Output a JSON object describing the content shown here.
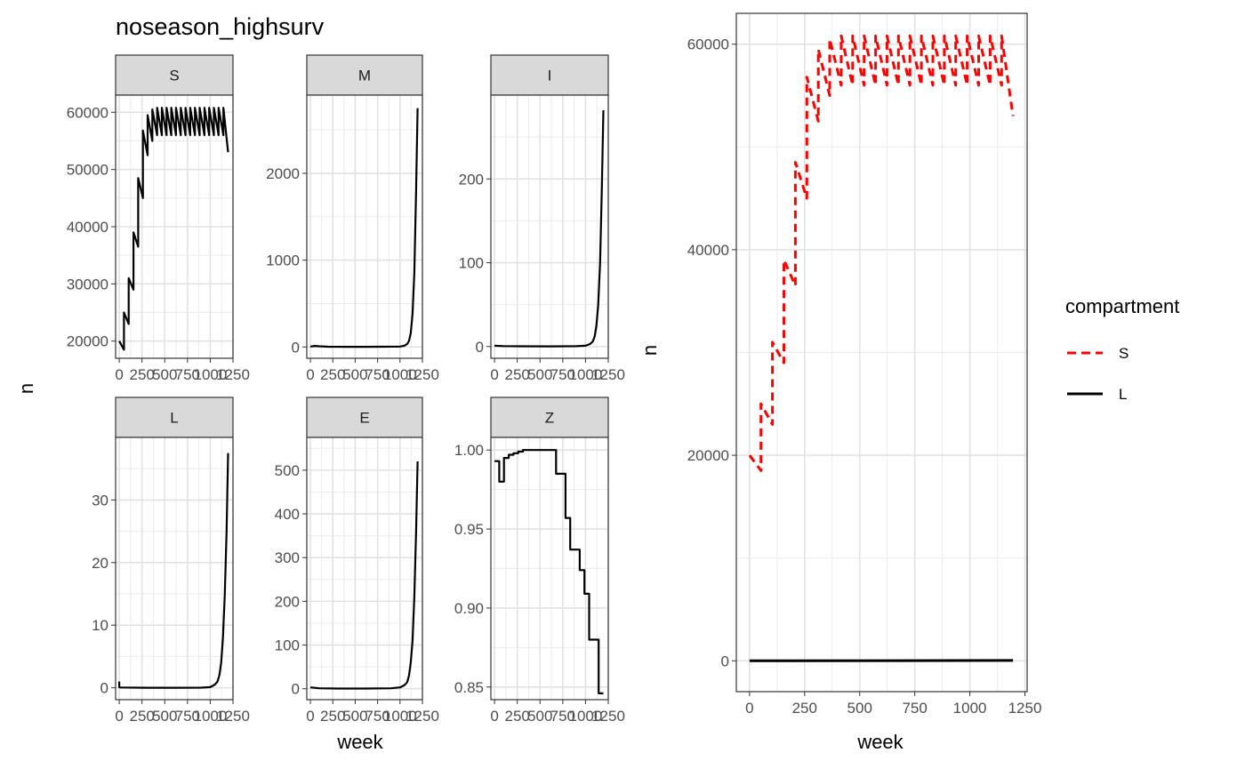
{
  "chart_data": [
    {
      "type": "line",
      "title": "noseason_highsurv",
      "facets": [
        {
          "strip": "S",
          "x_ticks": [
            0,
            250,
            500,
            750,
            1000,
            1250
          ],
          "x_tick_labels": [
            "0",
            "250",
            "500",
            "750",
            "1000",
            "1250"
          ],
          "xlim": [
            -40,
            1250
          ],
          "y_ticks": [
            20000,
            30000,
            40000,
            50000,
            60000
          ],
          "y_tick_labels": [
            "20000",
            "30000",
            "40000",
            "50000",
            "60000"
          ],
          "ylim": [
            17000,
            63000
          ],
          "x": [
            0,
            52,
            52,
            104,
            104,
            156,
            156,
            208,
            208,
            260,
            260,
            312,
            312,
            364,
            364,
            416,
            416,
            468,
            468,
            520,
            520,
            572,
            572,
            624,
            624,
            676,
            676,
            728,
            728,
            780,
            780,
            832,
            832,
            884,
            884,
            936,
            936,
            988,
            988,
            1040,
            1040,
            1092,
            1092,
            1144,
            1144,
            1196
          ],
          "y": [
            20000,
            18500,
            25000,
            23000,
            31000,
            29000,
            39000,
            36500,
            48500,
            45000,
            56800,
            52500,
            59500,
            55000,
            60500,
            56000,
            60800,
            56000,
            60800,
            56000,
            60800,
            56000,
            60800,
            56000,
            60800,
            56000,
            60800,
            56000,
            60800,
            56000,
            60800,
            56000,
            60800,
            56000,
            60800,
            56000,
            60800,
            56000,
            60800,
            56000,
            60800,
            56000,
            60800,
            56000,
            60800,
            53000
          ]
        },
        {
          "strip": "M",
          "x_ticks": [
            0,
            250,
            500,
            750,
            1000,
            1250
          ],
          "x_tick_labels": [
            "0",
            "250",
            "500",
            "750",
            "1000",
            "1250"
          ],
          "xlim": [
            -40,
            1250
          ],
          "y_ticks": [
            0,
            1000,
            2000
          ],
          "y_tick_labels": [
            "0",
            "1000",
            "2000"
          ],
          "ylim": [
            -130,
            2900
          ],
          "x": [
            0,
            50,
            100,
            200,
            400,
            600,
            800,
            1000,
            1050,
            1080,
            1100,
            1120,
            1140,
            1160,
            1180,
            1196
          ],
          "y": [
            5,
            12,
            8,
            3,
            2,
            2,
            3,
            5,
            15,
            35,
            70,
            160,
            380,
            850,
            1800,
            2750
          ]
        },
        {
          "strip": "I",
          "x_ticks": [
            0,
            250,
            500,
            750,
            1000,
            1250
          ],
          "x_tick_labels": [
            "0",
            "250",
            "500",
            "750",
            "1000",
            "1250"
          ],
          "xlim": [
            -40,
            1250
          ],
          "y_ticks": [
            0,
            100,
            200
          ],
          "y_tick_labels": [
            "0",
            "100",
            "200"
          ],
          "ylim": [
            -14,
            300
          ],
          "x": [
            0,
            100,
            300,
            600,
            900,
            1000,
            1050,
            1080,
            1100,
            1120,
            1140,
            1160,
            1180,
            1196
          ],
          "y": [
            1,
            0.5,
            0.3,
            0.2,
            0.4,
            1,
            3,
            6,
            12,
            25,
            50,
            100,
            190,
            282
          ]
        },
        {
          "strip": "L",
          "x_ticks": [
            0,
            250,
            500,
            750,
            1000,
            1250
          ],
          "x_tick_labels": [
            "0",
            "250",
            "500",
            "750",
            "1000",
            "1250"
          ],
          "xlim": [
            -40,
            1250
          ],
          "y_ticks": [
            0,
            10,
            20,
            30
          ],
          "y_tick_labels": [
            "0",
            "10",
            "20",
            "30"
          ],
          "ylim": [
            -1.9,
            40
          ],
          "x": [
            0,
            0,
            10,
            300,
            600,
            900,
            1000,
            1050,
            1080,
            1100,
            1120,
            1140,
            1160,
            1180,
            1196
          ],
          "y": [
            1,
            0.1,
            0.05,
            0.01,
            0.01,
            0.02,
            0.1,
            0.5,
            1,
            2,
            4,
            8,
            15,
            25,
            37.5
          ]
        },
        {
          "strip": "E",
          "x_ticks": [
            0,
            250,
            500,
            750,
            1000,
            1250
          ],
          "x_tick_labels": [
            "0",
            "250",
            "500",
            "750",
            "1000",
            "1250"
          ],
          "xlim": [
            -40,
            1250
          ],
          "y_ticks": [
            0,
            100,
            200,
            300,
            400,
            500
          ],
          "y_tick_labels": [
            "0",
            "100",
            "200",
            "300",
            "400",
            "500"
          ],
          "ylim": [
            -25,
            575
          ],
          "x": [
            0,
            100,
            300,
            600,
            900,
            1000,
            1050,
            1080,
            1100,
            1120,
            1140,
            1160,
            1180,
            1196
          ],
          "y": [
            3,
            1,
            0.5,
            0.5,
            1,
            3,
            8,
            15,
            30,
            60,
            110,
            210,
            360,
            520
          ]
        },
        {
          "strip": "Z",
          "x_ticks": [
            0,
            250,
            500,
            750,
            1000,
            1250
          ],
          "x_tick_labels": [
            "0",
            "250",
            "500",
            "750",
            "1000",
            "1250"
          ],
          "xlim": [
            -40,
            1250
          ],
          "y_ticks": [
            0.85,
            0.9,
            0.95,
            1.0
          ],
          "y_tick_labels": [
            "0.85",
            "0.90",
            "0.95",
            "1.00"
          ],
          "ylim": [
            0.842,
            1.008
          ],
          "x": [
            0,
            52,
            52,
            104,
            104,
            156,
            156,
            208,
            208,
            260,
            260,
            312,
            312,
            676,
            676,
            780,
            780,
            832,
            832,
            936,
            936,
            988,
            988,
            1040,
            1040,
            1144,
            1144,
            1196
          ],
          "y": [
            0.993,
            0.993,
            0.98,
            0.98,
            0.995,
            0.995,
            0.997,
            0.997,
            0.998,
            0.998,
            0.999,
            0.999,
            1.0,
            1.0,
            0.985,
            0.985,
            0.957,
            0.957,
            0.937,
            0.937,
            0.924,
            0.924,
            0.909,
            0.909,
            0.88,
            0.88,
            0.846,
            0.846
          ]
        }
      ],
      "xlabel": "week",
      "ylabel": "n",
      "grid": true
    },
    {
      "type": "line",
      "title": "",
      "xlabel": "week",
      "ylabel": "n",
      "x_ticks": [
        0,
        250,
        500,
        750,
        1000,
        1250
      ],
      "x_tick_labels": [
        "0",
        "250",
        "500",
        "750",
        "1000",
        "1250"
      ],
      "xlim": [
        -60,
        1260
      ],
      "y_ticks": [
        0,
        20000,
        40000,
        60000
      ],
      "y_tick_labels": [
        "0",
        "20000",
        "40000",
        "60000"
      ],
      "ylim": [
        -3000,
        63000
      ],
      "grid": true,
      "legend": {
        "title": "compartment",
        "placement": "right",
        "entries": [
          {
            "label": "S",
            "color": "#ff0000",
            "dash": "dashed"
          },
          {
            "label": "L",
            "color": "#000000",
            "dash": "solid"
          }
        ]
      },
      "series": [
        {
          "name": "S",
          "color": "#ff0000",
          "dash": "dashed",
          "x": [
            0,
            52,
            52,
            104,
            104,
            156,
            156,
            208,
            208,
            260,
            260,
            312,
            312,
            364,
            364,
            416,
            416,
            468,
            468,
            520,
            520,
            572,
            572,
            624,
            624,
            676,
            676,
            728,
            728,
            780,
            780,
            832,
            832,
            884,
            884,
            936,
            936,
            988,
            988,
            1040,
            1040,
            1092,
            1092,
            1144,
            1144,
            1196
          ],
          "values": [
            20000,
            18500,
            25000,
            23000,
            31000,
            29000,
            39000,
            36500,
            48500,
            45000,
            56800,
            52500,
            59500,
            55000,
            60500,
            56000,
            60800,
            56000,
            60800,
            56000,
            60800,
            56000,
            60800,
            56000,
            60800,
            56000,
            60800,
            56000,
            60800,
            56000,
            60800,
            56000,
            60800,
            56000,
            60800,
            56000,
            60800,
            56000,
            60800,
            56000,
            60800,
            56000,
            60800,
            56000,
            60800,
            53000
          ]
        },
        {
          "name": "L",
          "color": "#000000",
          "dash": "solid",
          "x": [
            0,
            1196
          ],
          "values": [
            0,
            38
          ]
        }
      ]
    }
  ]
}
